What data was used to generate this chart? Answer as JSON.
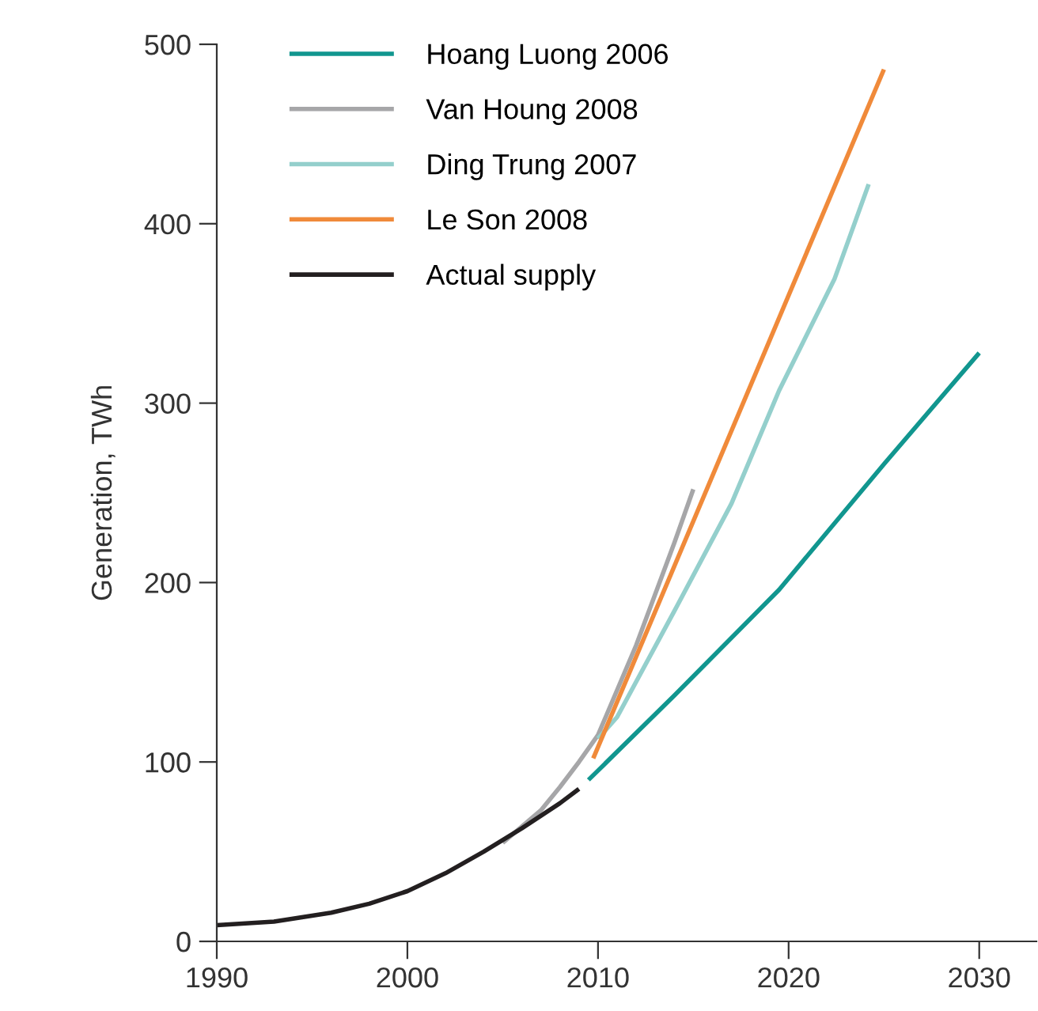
{
  "chart_data": {
    "type": "line",
    "ylabel": "Generation, TWh",
    "xlim": [
      1990,
      2033
    ],
    "ylim": [
      0,
      500
    ],
    "xticks": [
      1990,
      2000,
      2010,
      2020,
      2030
    ],
    "yticks": [
      0,
      100,
      200,
      300,
      400,
      500
    ],
    "grid": false,
    "legend": "top left",
    "marker": "none",
    "line_style": "solid",
    "series": [
      {
        "name": "Hoang Luong 2006",
        "color": "#11968f",
        "x": [
          2009.5,
          2014,
          2019.5,
          2025,
          2030
        ],
        "values": [
          90,
          137,
          196,
          266,
          328
        ]
      },
      {
        "name": "Van Houng 2008",
        "color": "#a6a6a8",
        "x": [
          2005,
          2007,
          2008,
          2009,
          2010,
          2012,
          2014,
          2015
        ],
        "values": [
          55,
          73,
          86,
          100,
          115,
          165,
          222,
          252
        ]
      },
      {
        "name": "Ding Trung 2007",
        "color": "#94cfcc",
        "x": [
          2010,
          2011,
          2014,
          2017,
          2019.5,
          2022.4,
          2024.2
        ],
        "values": [
          113,
          125,
          184,
          244,
          307,
          369,
          422
        ]
      },
      {
        "name": "Le Son 2008",
        "color": "#f08a3a",
        "x": [
          2009.75,
          2025
        ],
        "values": [
          102,
          486
        ]
      },
      {
        "name": "Actual supply",
        "color": "#231f20",
        "x": [
          1990,
          1993,
          1996,
          1998,
          2000,
          2002,
          2004,
          2006,
          2008,
          2009
        ],
        "values": [
          9,
          11,
          16,
          21,
          28,
          38,
          50,
          63,
          77,
          85
        ]
      }
    ]
  }
}
